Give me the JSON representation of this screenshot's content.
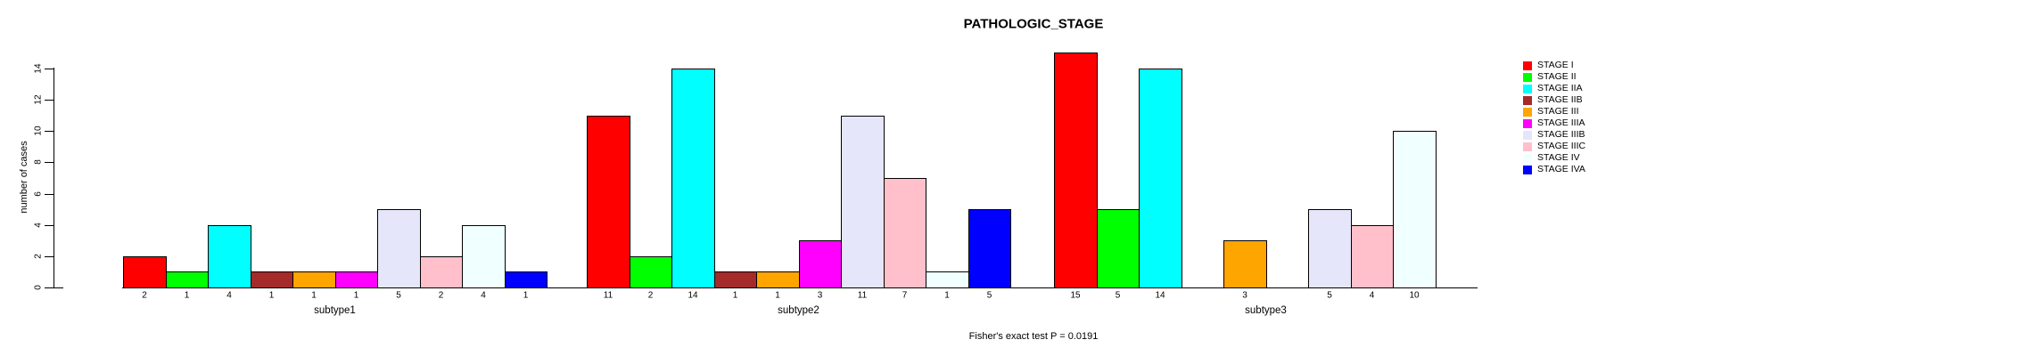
{
  "chart_data": {
    "type": "bar",
    "title": "PATHOLOGIC_STAGE",
    "ylabel": "number of cases",
    "footer": "Fisher's exact test P = 0.0191",
    "ylim": [
      0,
      15
    ],
    "yticks": [
      0,
      2,
      4,
      6,
      8,
      10,
      12,
      14
    ],
    "grid": false,
    "legend_position": "right",
    "categories": [
      "subtype1",
      "subtype2",
      "subtype3"
    ],
    "series": [
      {
        "name": "STAGE I",
        "color": "#FF0000",
        "values": [
          2,
          11,
          15
        ]
      },
      {
        "name": "STAGE II",
        "color": "#00FF00",
        "values": [
          1,
          2,
          5
        ]
      },
      {
        "name": "STAGE IIA",
        "color": "#00FFFF",
        "values": [
          4,
          14,
          14
        ]
      },
      {
        "name": "STAGE IIB",
        "color": "#A52A2A",
        "values": [
          1,
          1,
          0
        ]
      },
      {
        "name": "STAGE III",
        "color": "#FFA500",
        "values": [
          1,
          1,
          3
        ]
      },
      {
        "name": "STAGE IIIA",
        "color": "#FF00FF",
        "values": [
          1,
          3,
          0
        ]
      },
      {
        "name": "STAGE IIIB",
        "color": "#E6E6FA",
        "values": [
          5,
          11,
          5
        ]
      },
      {
        "name": "STAGE IIIC",
        "color": "#FFC0CB",
        "values": [
          2,
          7,
          4
        ]
      },
      {
        "name": "STAGE IV",
        "color": "#F0FFFF",
        "values": [
          4,
          1,
          10
        ]
      },
      {
        "name": "STAGE IVA",
        "color": "#0000FF",
        "values": [
          1,
          5,
          0
        ]
      }
    ],
    "bar_value_labels": {
      "subtype1": [
        2,
        1,
        4,
        1,
        1,
        1,
        5,
        2,
        4,
        1
      ],
      "subtype2": [
        11,
        2,
        14,
        1,
        1,
        3,
        11,
        7,
        1,
        5
      ],
      "subtype3": [
        15,
        5,
        14,
        null,
        3,
        null,
        5,
        4,
        10,
        null
      ]
    }
  }
}
